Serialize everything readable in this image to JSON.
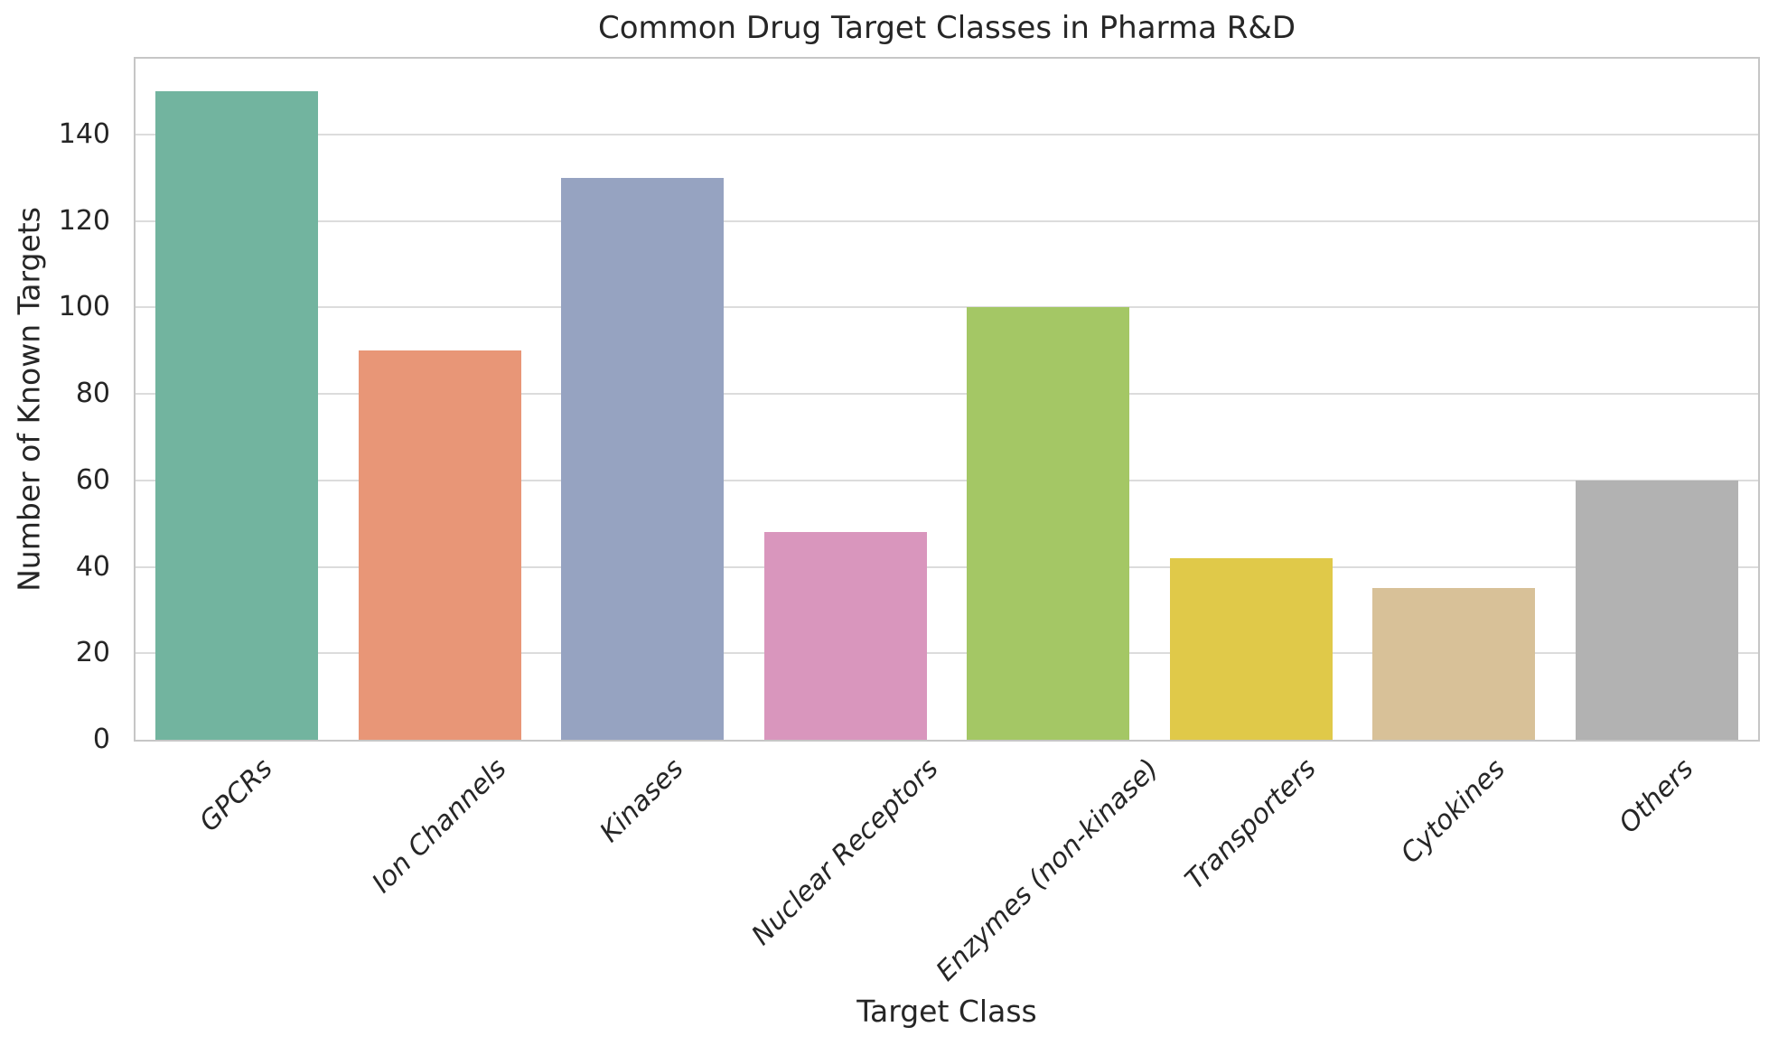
{
  "chart_data": {
    "type": "bar",
    "title": "Common Drug Target Classes in Pharma R&D",
    "xlabel": "Target Class",
    "ylabel": "Number of Known Targets",
    "categories": [
      "GPCRs",
      "Ion Channels",
      "Kinases",
      "Nuclear Receptors",
      "Enzymes (non-kinase)",
      "Transporters",
      "Cytokines",
      "Others"
    ],
    "values": [
      150,
      90,
      130,
      48,
      100,
      42,
      35,
      60
    ],
    "bar_colors": [
      "#72b49f",
      "#e89677",
      "#96a3c1",
      "#d996bd",
      "#a4c765",
      "#e0c949",
      "#d8c198",
      "#b2b2b2"
    ],
    "yticks": [
      0,
      20,
      40,
      60,
      80,
      100,
      120,
      140
    ],
    "ylim": [
      0,
      157.5
    ],
    "grid": true,
    "legend_position": "none",
    "x_tick_rotation_deg": 45,
    "x_tick_style": "italic",
    "colors": {
      "background": "#ffffff",
      "grid": "#dcdcdc",
      "spine": "#c6c6c6",
      "text": "#262626"
    }
  }
}
